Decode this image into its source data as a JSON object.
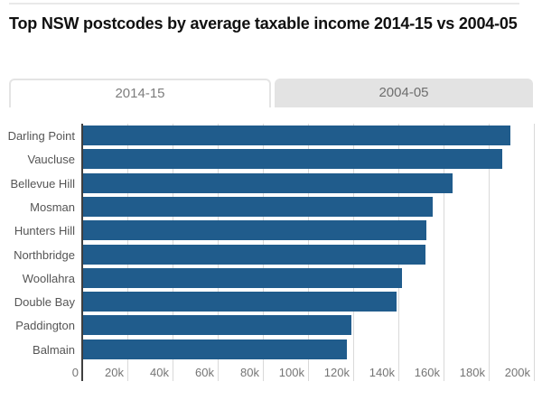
{
  "page": {
    "title": "Top NSW postcodes by average taxable income 2014-15 vs 2004-05"
  },
  "tabs": [
    {
      "label": "2014-15",
      "active": true
    },
    {
      "label": "2004-05",
      "active": false
    }
  ],
  "colors": {
    "bar": "#205c8c",
    "grid": "#d9d9d9",
    "axis": "#3f3f3f",
    "tab_inactive_bg": "#e3e3e3"
  },
  "chart_data": {
    "type": "bar",
    "orientation": "horizontal",
    "title": "Top NSW postcodes by average taxable income 2014-15 vs 2004-05",
    "series_name": "2014-15",
    "categories": [
      "Darling Point",
      "Vaucluse",
      "Bellevue Hill",
      "Mosman",
      "Hunters Hill",
      "Northbridge",
      "Woollahra",
      "Double Bay",
      "Paddington",
      "Balmain"
    ],
    "values": [
      189500,
      186000,
      164000,
      155000,
      152500,
      152000,
      141500,
      139000,
      119000,
      117000
    ],
    "xlabel": "",
    "ylabel": "",
    "xlim": [
      0,
      200000
    ],
    "tick_values": [
      0,
      20000,
      40000,
      60000,
      80000,
      100000,
      120000,
      140000,
      160000,
      180000,
      200000
    ],
    "tick_labels": [
      "0",
      "20k",
      "40k",
      "60k",
      "80k",
      "100k",
      "120k",
      "140k",
      "160k",
      "180k",
      "200k"
    ],
    "grid": true,
    "legend": false
  }
}
